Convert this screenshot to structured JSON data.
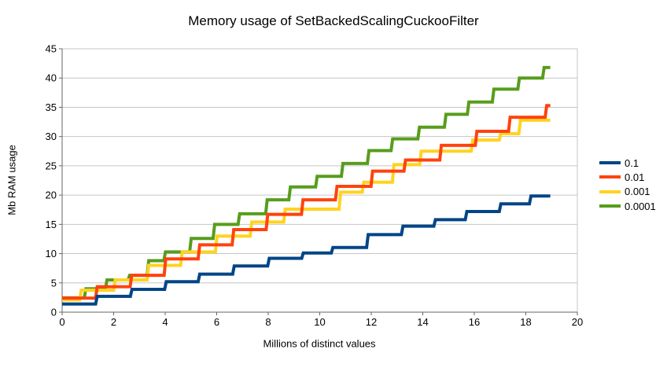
{
  "chart_data": {
    "type": "line",
    "subtype": "step",
    "title": "Memory usage of SetBackedScalingCuckooFilter",
    "xlabel": "Millions of distinct values",
    "ylabel": "Mb RAM usage",
    "xlim": [
      0,
      20
    ],
    "ylim": [
      0,
      45
    ],
    "xticks": [
      0,
      2,
      4,
      6,
      8,
      10,
      12,
      14,
      16,
      18,
      20
    ],
    "yticks": [
      0,
      5,
      10,
      15,
      20,
      25,
      30,
      35,
      40,
      45
    ],
    "grid": "horizontal",
    "legend_position": "right",
    "x_end": 18.95,
    "colors": {
      "grid": "#C6C6C6",
      "axis": "#666666",
      "plot_right_border": "#C6C6C6"
    },
    "series": [
      {
        "name": "0.1",
        "color": "#004586",
        "start": 1.4,
        "steps": [
          [
            1.3,
            2.7
          ],
          [
            2.65,
            3.9
          ],
          [
            3.98,
            5.2
          ],
          [
            5.28,
            6.5
          ],
          [
            6.62,
            7.9
          ],
          [
            7.98,
            9.2
          ],
          [
            9.3,
            10.1
          ],
          [
            10.45,
            11.05
          ],
          [
            11.82,
            13.25
          ],
          [
            13.17,
            14.7
          ],
          [
            14.43,
            15.8
          ],
          [
            15.65,
            17.2
          ],
          [
            16.97,
            18.5
          ],
          [
            18.14,
            19.85
          ]
        ]
      },
      {
        "name": "0.01",
        "color": "#FF420E",
        "start": 2.4,
        "steps": [
          [
            1.3,
            4.35
          ],
          [
            2.64,
            6.3
          ],
          [
            3.96,
            9.1
          ],
          [
            5.28,
            11.5
          ],
          [
            6.6,
            14.1
          ],
          [
            7.92,
            16.7
          ],
          [
            9.29,
            19.2
          ],
          [
            10.61,
            21.5
          ],
          [
            11.99,
            24.1
          ],
          [
            13.27,
            26.0
          ],
          [
            14.66,
            28.5
          ],
          [
            16.04,
            30.9
          ],
          [
            17.33,
            33.3
          ],
          [
            18.75,
            35.3
          ]
        ]
      },
      {
        "name": "0.001",
        "color": "#FFD320",
        "start": 2.1,
        "steps": [
          [
            0.68,
            3.75
          ],
          [
            2.0,
            5.5
          ],
          [
            3.3,
            8.0
          ],
          [
            4.6,
            10.3
          ],
          [
            5.95,
            13.0
          ],
          [
            7.3,
            15.4
          ],
          [
            8.6,
            17.6
          ],
          [
            10.75,
            20.5
          ],
          [
            11.65,
            22.2
          ],
          [
            12.82,
            25.2
          ],
          [
            13.88,
            27.5
          ],
          [
            15.88,
            29.4
          ],
          [
            16.97,
            30.5
          ],
          [
            17.73,
            32.8
          ]
        ]
      },
      {
        "name": "0.0001",
        "color": "#579D1C",
        "start": 2.45,
        "steps": [
          [
            0.86,
            4.0
          ],
          [
            1.68,
            5.5
          ],
          [
            2.56,
            6.3
          ],
          [
            3.3,
            8.8
          ],
          [
            3.95,
            10.3
          ],
          [
            4.95,
            12.6
          ],
          [
            5.86,
            15.0
          ],
          [
            6.83,
            16.8
          ],
          [
            7.9,
            19.2
          ],
          [
            8.8,
            21.4
          ],
          [
            9.84,
            23.2
          ],
          [
            10.84,
            25.4
          ],
          [
            11.85,
            27.6
          ],
          [
            12.77,
            29.6
          ],
          [
            13.81,
            31.6
          ],
          [
            14.84,
            33.8
          ],
          [
            15.73,
            35.9
          ],
          [
            16.7,
            38.1
          ],
          [
            17.69,
            40.0
          ],
          [
            18.65,
            41.8
          ]
        ]
      }
    ]
  }
}
